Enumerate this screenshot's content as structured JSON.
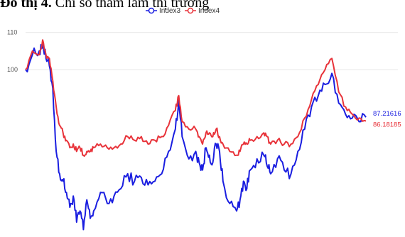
{
  "heading": {
    "prefix": "Đồ thị 4.",
    "text": " Chỉ số tham lam thị trường"
  },
  "legend": [
    {
      "label": "Index3",
      "color": "#1a1ee0"
    },
    {
      "label": "Index4",
      "color": "#e8333a"
    }
  ],
  "chart_data": {
    "type": "line",
    "title": "",
    "xlabel": "",
    "ylabel": "",
    "ylim": [
      55,
      113
    ],
    "yticks": [
      110,
      100
    ],
    "grid": true,
    "legend_position": "top-center",
    "end_labels": {
      "Index3": "87.21616",
      "Index4": "86.18185"
    },
    "x": [
      0,
      10,
      20,
      25,
      30,
      35,
      40,
      45,
      50,
      55,
      60,
      65,
      70,
      75,
      80,
      85,
      90,
      95,
      100,
      110,
      120,
      130,
      140,
      150,
      160,
      170,
      180,
      190,
      200,
      210,
      220,
      225,
      230,
      240,
      250,
      255,
      260,
      265,
      270,
      275,
      280,
      285,
      290,
      300,
      310,
      315,
      320,
      325,
      330,
      340,
      350,
      355,
      360,
      370,
      380,
      390,
      400,
      410,
      420,
      430,
      440,
      450,
      460,
      470,
      480,
      490,
      500
    ],
    "series": [
      {
        "name": "Index3",
        "color": "#1a1ee0",
        "values": [
          100,
          104,
          105,
          107,
          103,
          101,
          95,
          78,
          72,
          70,
          67,
          63,
          66,
          59,
          62,
          57,
          65,
          60,
          62,
          67,
          64,
          66,
          68,
          72,
          70,
          71,
          69,
          70,
          72,
          78,
          84,
          92,
          82,
          76,
          78,
          75,
          73,
          79,
          77,
          75,
          80,
          78,
          70,
          64,
          62,
          65,
          70,
          68,
          73,
          76,
          77,
          74,
          72,
          76,
          73,
          72,
          78,
          84,
          90,
          93,
          96,
          99,
          91,
          88,
          87,
          86,
          87.2
        ]
      },
      {
        "name": "Index4",
        "color": "#e8333a",
        "values": [
          100,
          105,
          104,
          108,
          104,
          103,
          97,
          90,
          85,
          83,
          81,
          79,
          80,
          78,
          79,
          77,
          78,
          78,
          79,
          80,
          79,
          79,
          80,
          82,
          81,
          82,
          80,
          81,
          82,
          85,
          89,
          93,
          86,
          84,
          84,
          82,
          80,
          83,
          83,
          82,
          84,
          82,
          80,
          78,
          77,
          78,
          80,
          80,
          81,
          82,
          83,
          82,
          80,
          81,
          80,
          80,
          82,
          87,
          92,
          96,
          100,
          103,
          94,
          90,
          88,
          87,
          86.2
        ]
      }
    ]
  }
}
